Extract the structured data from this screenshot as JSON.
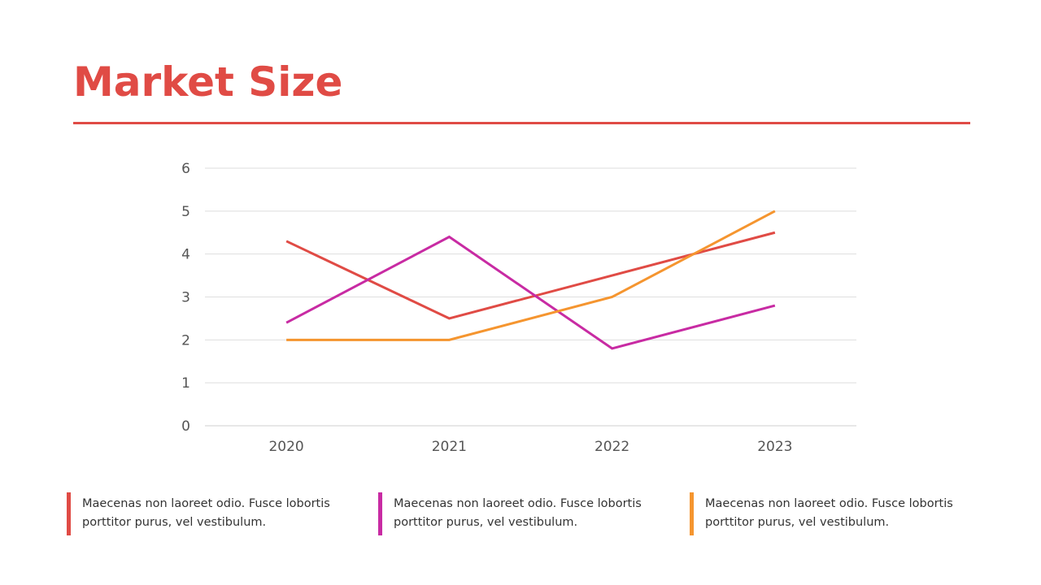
{
  "slide": {
    "title": "Market Size",
    "accent_color": "#e04b45"
  },
  "chart_data": {
    "type": "line",
    "categories": [
      "2020",
      "2021",
      "2022",
      "2023"
    ],
    "ylim": [
      0,
      6
    ],
    "yticks": [
      0,
      1,
      2,
      3,
      4,
      5,
      6
    ],
    "grid": true,
    "legend": "none",
    "series": [
      {
        "color": "#e04b45",
        "values": [
          4.3,
          2.5,
          3.5,
          4.5
        ]
      },
      {
        "color": "#c82ba3",
        "values": [
          2.4,
          4.4,
          1.8,
          2.8
        ]
      },
      {
        "color": "#f5952f",
        "values": [
          2.0,
          2.0,
          3.0,
          5.0
        ]
      }
    ]
  },
  "notes": [
    {
      "color": "#e04b45",
      "text": "Maecenas non laoreet odio. Fusce lobortis porttitor purus, vel vestibulum."
    },
    {
      "color": "#c82ba3",
      "text": "Maecenas non laoreet odio. Fusce lobortis porttitor purus, vel vestibulum."
    },
    {
      "color": "#f5952f",
      "text": "Maecenas non laoreet odio. Fusce lobortis porttitor purus, vel vestibulum."
    }
  ]
}
